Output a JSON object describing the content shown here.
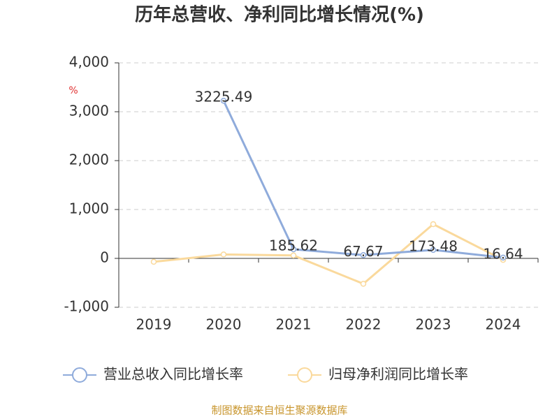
{
  "chart_data": {
    "type": "line",
    "title": "历年总营收、净利同比增长情况(%)",
    "y_label": "%",
    "categories": [
      "2019",
      "2020",
      "2021",
      "2022",
      "2023",
      "2024"
    ],
    "series": [
      {
        "name": "营业总收入同比增长率",
        "color": "#8fabdb",
        "values": [
          null,
          3225.49,
          185.62,
          67.67,
          173.48,
          16.64
        ],
        "show_labels": true
      },
      {
        "name": "归母净利润同比增长率",
        "color": "#fad99c",
        "values": [
          -70,
          80,
          60,
          -520,
          700,
          -30
        ],
        "show_labels": false
      }
    ],
    "ylim": [
      -1000,
      4000
    ],
    "yticks": [
      {
        "value": -1000,
        "label": "-1,000"
      },
      0,
      {
        "value": 1000,
        "label": "1,000"
      },
      {
        "value": 2000,
        "label": "2,000"
      },
      {
        "value": 3000,
        "label": "3,000"
      },
      {
        "value": 4000,
        "label": "4,000"
      }
    ],
    "grid": true,
    "source": "制图数据来自恒生聚源数据库"
  }
}
